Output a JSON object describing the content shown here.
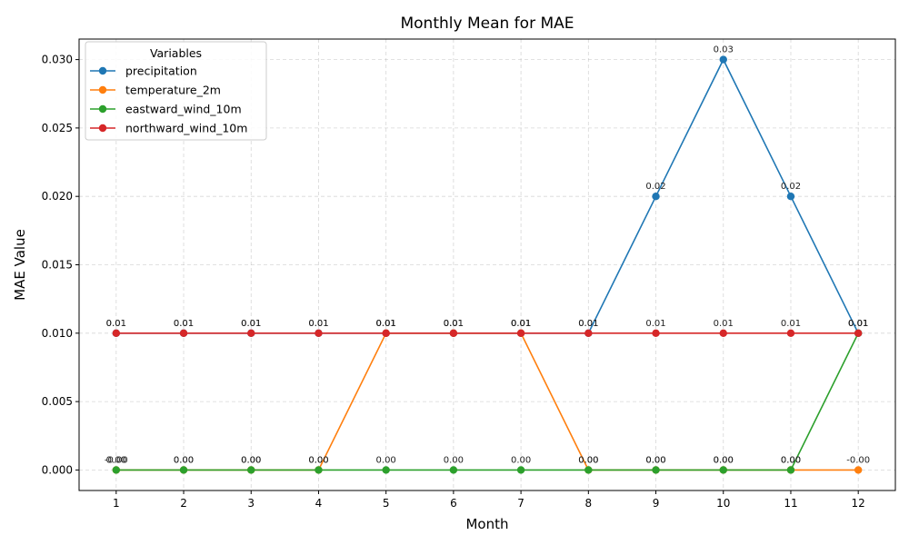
{
  "chart_data": {
    "type": "line",
    "title": "Monthly Mean for MAE",
    "xlabel": "Month",
    "ylabel": "MAE Value",
    "x": [
      1,
      2,
      3,
      4,
      5,
      6,
      7,
      8,
      9,
      10,
      11,
      12
    ],
    "x_tick_labels": [
      "1",
      "2",
      "3",
      "4",
      "5",
      "6",
      "7",
      "8",
      "9",
      "10",
      "11",
      "12"
    ],
    "y_ticks": [
      0.0,
      0.005,
      0.01,
      0.015,
      0.02,
      0.025,
      0.03
    ],
    "y_tick_labels": [
      "0.000",
      "0.005",
      "0.010",
      "0.015",
      "0.020",
      "0.025",
      "0.030"
    ],
    "ylim": [
      -0.0015,
      0.0315
    ],
    "xlim": [
      0.45,
      12.55
    ],
    "grid": true,
    "legend": {
      "title": "Variables",
      "placement": "top-left"
    },
    "series": [
      {
        "name": "precipitation",
        "color": "#1f77b4",
        "values": [
          0.01,
          0.01,
          0.01,
          0.01,
          0.01,
          0.01,
          0.01,
          0.01,
          0.02,
          0.03,
          0.02,
          0.01
        ],
        "labels": [
          "0.01",
          "0.01",
          "0.01",
          "0.01",
          "0.01",
          "0.01",
          "0.01",
          "0.01",
          "0.02",
          "0.03",
          "0.02",
          "0.01"
        ]
      },
      {
        "name": "temperature_2m",
        "color": "#ff7f0e",
        "values": [
          0.0,
          0.0,
          0.0,
          0.0,
          0.01,
          0.01,
          0.01,
          0.0,
          0.0,
          0.0,
          0.0,
          0.0
        ],
        "labels": [
          "-0.00",
          "0.00",
          "0.00",
          "0.00",
          "0.01",
          "0.01",
          "0.01",
          "0.00",
          "0.00",
          "0.00",
          "0.00",
          "-0.00"
        ]
      },
      {
        "name": "eastward_wind_10m",
        "color": "#2ca02c",
        "values": [
          0.0,
          0.0,
          0.0,
          0.0,
          0.0,
          0.0,
          0.0,
          0.0,
          0.0,
          0.0,
          0.0,
          0.01
        ],
        "labels": [
          "0.00",
          "0.00",
          "0.00",
          "0.00",
          "0.00",
          "0.00",
          "0.00",
          "0.00",
          "0.00",
          "0.00",
          "0.00",
          "0.01"
        ]
      },
      {
        "name": "northward_wind_10m",
        "color": "#d62728",
        "values": [
          0.01,
          0.01,
          0.01,
          0.01,
          0.01,
          0.01,
          0.01,
          0.01,
          0.01,
          0.01,
          0.01,
          0.01
        ],
        "labels": [
          "0.01",
          "0.01",
          "0.01",
          "0.01",
          "0.01",
          "0.01",
          "0.01",
          "0.01",
          "0.01",
          "0.01",
          "0.01",
          "0.01"
        ]
      }
    ]
  }
}
